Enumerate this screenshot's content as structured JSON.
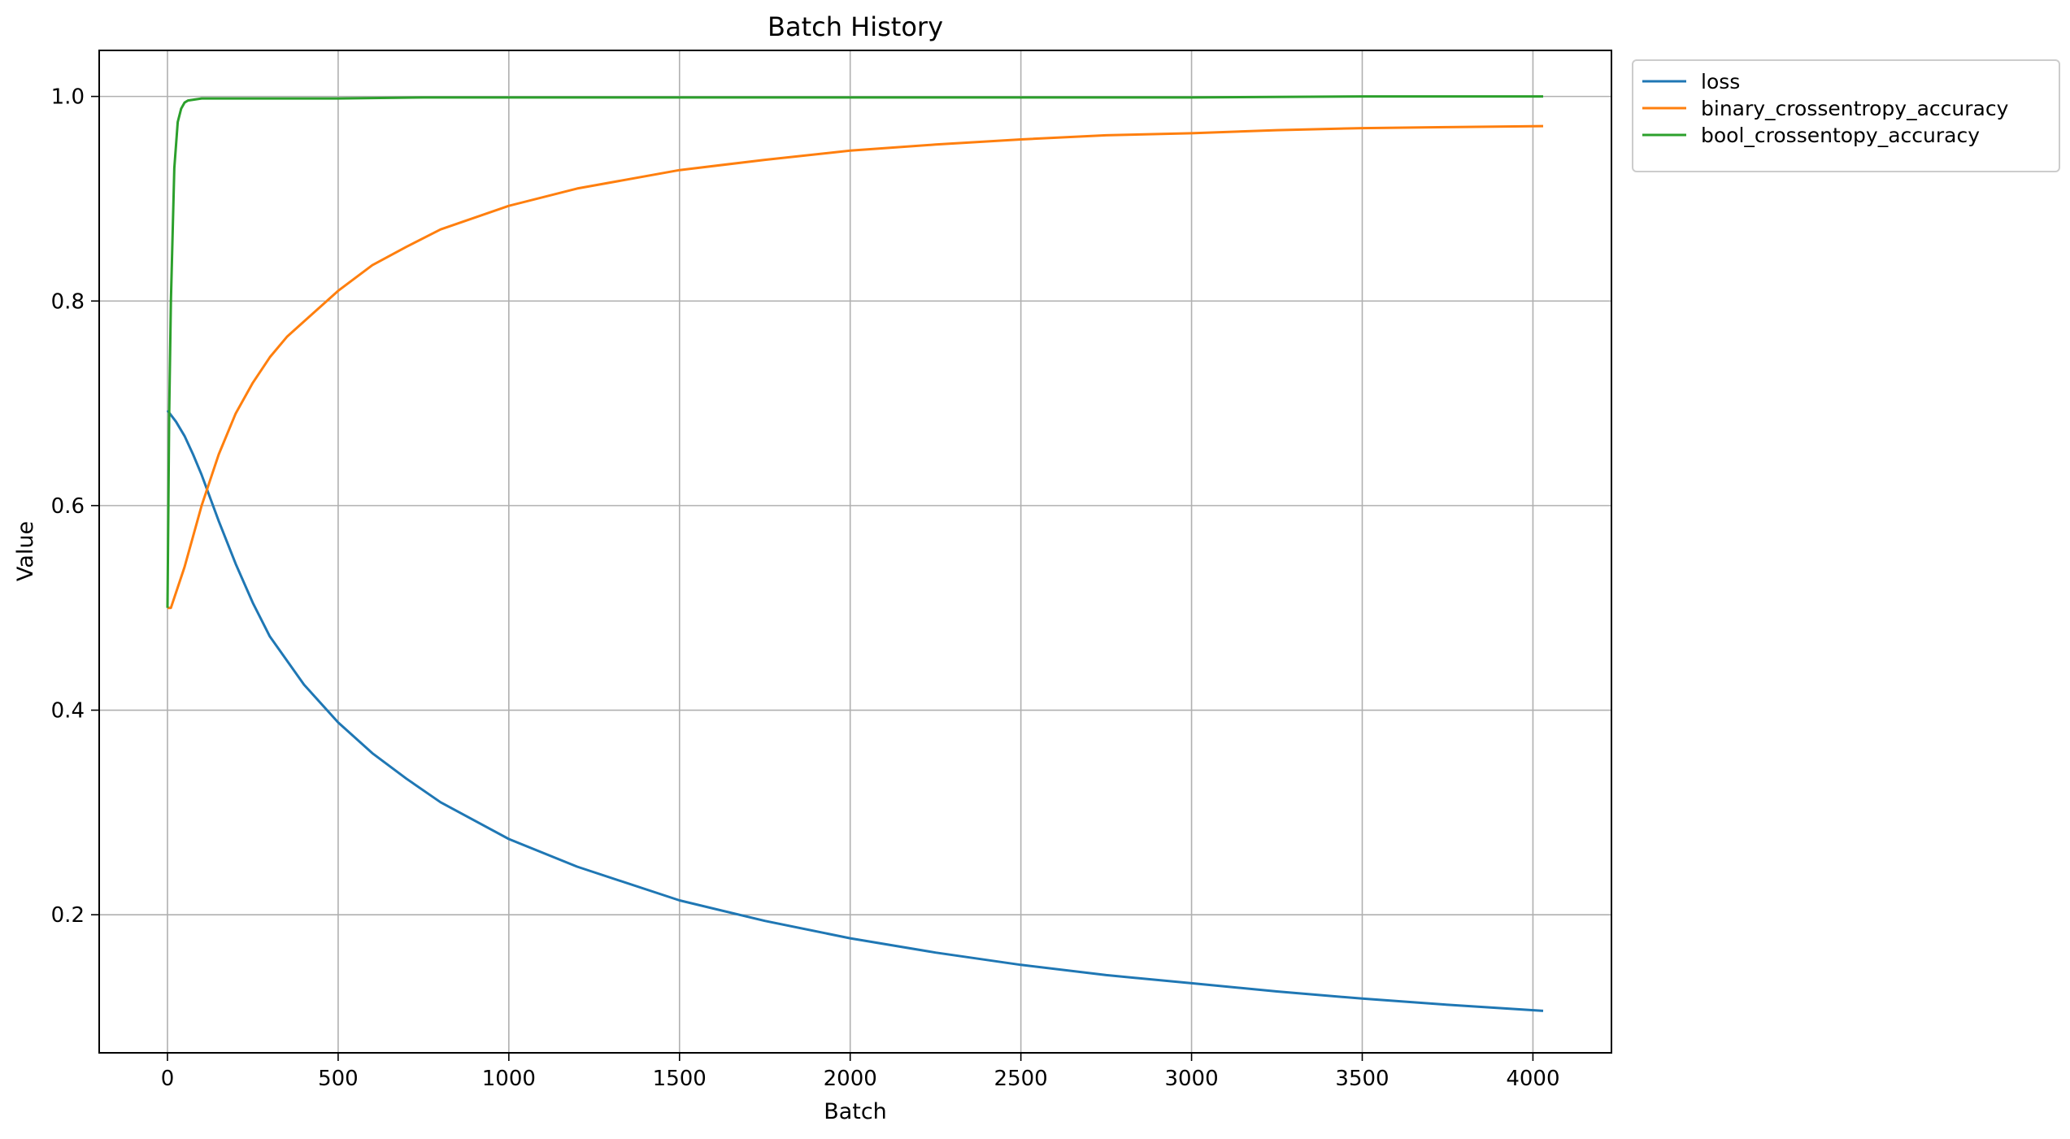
{
  "chart_data": {
    "type": "line",
    "title": "Batch History",
    "xlabel": "Batch",
    "ylabel": "Value",
    "xlim": [
      -200,
      4230
    ],
    "ylim": [
      0.065,
      1.045
    ],
    "xticks": [
      0,
      500,
      1000,
      1500,
      2000,
      2500,
      3000,
      3500,
      4000
    ],
    "xtick_labels": [
      "0",
      "500",
      "1000",
      "1500",
      "2000",
      "2500",
      "3000",
      "3500",
      "4000"
    ],
    "yticks": [
      0.2,
      0.4,
      0.6,
      0.8,
      1.0
    ],
    "ytick_labels": [
      "0.2",
      "0.4",
      "0.6",
      "0.8",
      "1.0"
    ],
    "grid": true,
    "legend_position": "outside-top-right",
    "series": [
      {
        "name": "loss",
        "color": "#1f77b4",
        "x": [
          0,
          25,
          50,
          75,
          100,
          150,
          200,
          250,
          300,
          400,
          500,
          600,
          700,
          800,
          1000,
          1200,
          1500,
          1750,
          2000,
          2250,
          2500,
          2750,
          3000,
          3250,
          3500,
          3750,
          4030
        ],
        "y": [
          0.693,
          0.682,
          0.668,
          0.65,
          0.63,
          0.585,
          0.543,
          0.505,
          0.472,
          0.425,
          0.388,
          0.358,
          0.333,
          0.31,
          0.274,
          0.247,
          0.214,
          0.194,
          0.177,
          0.163,
          0.151,
          0.141,
          0.133,
          0.125,
          0.118,
          0.112,
          0.106
        ]
      },
      {
        "name": "binary_crossentropy_accuracy",
        "color": "#ff7f0e",
        "x": [
          0,
          10,
          50,
          100,
          150,
          200,
          250,
          300,
          350,
          400,
          500,
          600,
          700,
          800,
          1000,
          1200,
          1500,
          1750,
          2000,
          2250,
          2500,
          2750,
          3000,
          3250,
          3500,
          3750,
          4030
        ],
        "y": [
          0.5,
          0.5,
          0.54,
          0.6,
          0.65,
          0.69,
          0.72,
          0.745,
          0.765,
          0.78,
          0.81,
          0.835,
          0.853,
          0.87,
          0.893,
          0.91,
          0.928,
          0.938,
          0.947,
          0.953,
          0.958,
          0.962,
          0.964,
          0.967,
          0.969,
          0.97,
          0.971
        ]
      },
      {
        "name": "bool_crossentopy_accuracy",
        "color": "#2ca02c",
        "x": [
          0,
          5,
          10,
          20,
          30,
          40,
          50,
          60,
          80,
          100,
          150,
          200,
          300,
          500,
          750,
          1000,
          1500,
          2000,
          2500,
          3000,
          3500,
          4030
        ],
        "y": [
          0.5,
          0.69,
          0.8,
          0.93,
          0.975,
          0.988,
          0.994,
          0.996,
          0.997,
          0.998,
          0.998,
          0.998,
          0.998,
          0.998,
          0.999,
          0.999,
          0.999,
          0.999,
          0.999,
          0.999,
          1.0,
          1.0
        ]
      }
    ]
  }
}
